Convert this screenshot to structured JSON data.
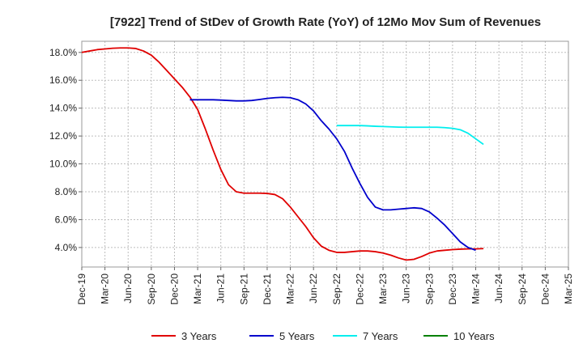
{
  "chart_data": {
    "type": "line",
    "title": "[7922]  Trend of StDev of Growth Rate (YoY) of 12Mo Mov Sum of Revenues",
    "xlabel": "",
    "ylabel": "",
    "ylim": [
      2.6,
      18.8
    ],
    "yticks": [
      4.0,
      6.0,
      8.0,
      10.0,
      12.0,
      14.0,
      16.0,
      18.0
    ],
    "ytick_labels": [
      "4.0%",
      "6.0%",
      "8.0%",
      "10.0%",
      "12.0%",
      "14.0%",
      "16.0%",
      "18.0%"
    ],
    "x_tick_labels": [
      "Dec-19",
      "Mar-20",
      "Jun-20",
      "Sep-20",
      "Dec-20",
      "Mar-21",
      "Jun-21",
      "Sep-21",
      "Dec-21",
      "Mar-22",
      "Jun-22",
      "Sep-22",
      "Dec-22",
      "Mar-23",
      "Jun-23",
      "Sep-23",
      "Dec-23",
      "Mar-24",
      "Jun-24",
      "Sep-24",
      "Dec-24",
      "Mar-25"
    ],
    "grid": true,
    "legend_position": "bottom",
    "series": [
      {
        "name": "3 Years",
        "color": "#e00000",
        "start_index": 0,
        "values": [
          18.0,
          18.1,
          18.2,
          18.25,
          18.3,
          18.32,
          18.32,
          18.28,
          18.1,
          17.8,
          17.3,
          16.7,
          16.1,
          15.5,
          14.8,
          13.9,
          12.5,
          11.0,
          9.6,
          8.5,
          8.0,
          7.9,
          7.9,
          7.9,
          7.88,
          7.8,
          7.5,
          6.9,
          6.2,
          5.5,
          4.7,
          4.1,
          3.8,
          3.65,
          3.65,
          3.7,
          3.75,
          3.75,
          3.7,
          3.6,
          3.45,
          3.25,
          3.1,
          3.15,
          3.35,
          3.6,
          3.75,
          3.8,
          3.85,
          3.88,
          3.9,
          3.9,
          3.92
        ]
      },
      {
        "name": "5 Years",
        "color": "#0000cc",
        "start_index": 14,
        "values": [
          14.6,
          14.6,
          14.6,
          14.6,
          14.58,
          14.55,
          14.52,
          14.52,
          14.55,
          14.62,
          14.7,
          14.75,
          14.78,
          14.75,
          14.6,
          14.3,
          13.8,
          13.1,
          12.5,
          11.8,
          10.9,
          9.7,
          8.6,
          7.6,
          6.9,
          6.7,
          6.7,
          6.75,
          6.8,
          6.85,
          6.8,
          6.55,
          6.1,
          5.6,
          5.0,
          4.4,
          4.0,
          3.8
        ]
      },
      {
        "name": "7 Years",
        "color": "#00eeee",
        "start_index": 33,
        "values": [
          12.75,
          12.75,
          12.75,
          12.75,
          12.73,
          12.7,
          12.68,
          12.66,
          12.64,
          12.63,
          12.63,
          12.63,
          12.63,
          12.63,
          12.6,
          12.55,
          12.45,
          12.2,
          11.8,
          11.4
        ]
      },
      {
        "name": "10 Years",
        "color": "#008000",
        "start_index": 0,
        "values": []
      }
    ]
  }
}
